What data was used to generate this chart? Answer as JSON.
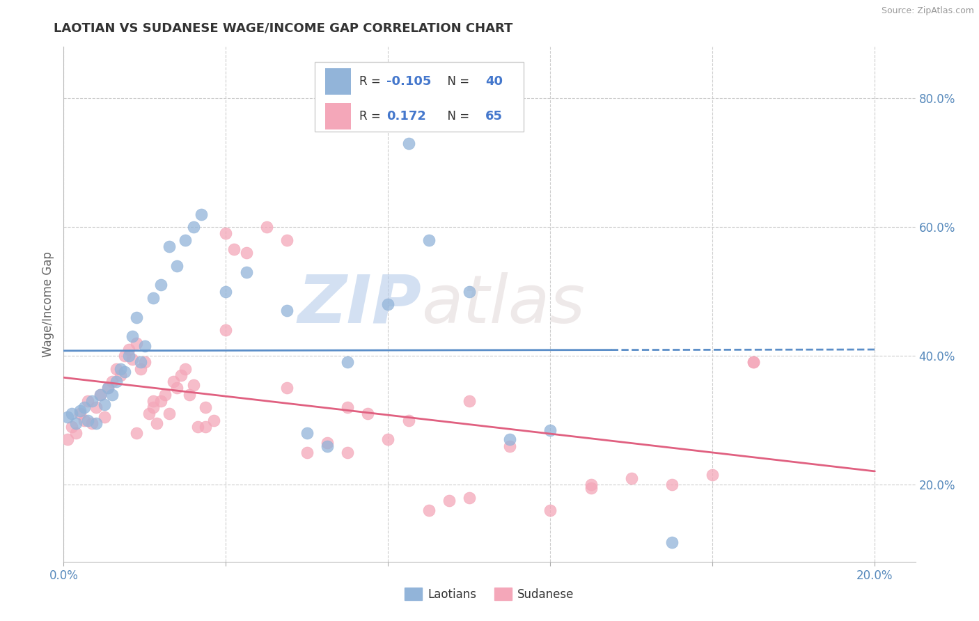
{
  "title": "LAOTIAN VS SUDANESE WAGE/INCOME GAP CORRELATION CHART",
  "source_text": "Source: ZipAtlas.com",
  "ylabel": "Wage/Income Gap",
  "watermark_zip": "ZIP",
  "watermark_atlas": "atlas",
  "xlim": [
    0.0,
    0.21
  ],
  "ylim": [
    0.08,
    0.88
  ],
  "xtick_vals": [
    0.0,
    0.04,
    0.08,
    0.12,
    0.16,
    0.2
  ],
  "xticklabels": [
    "0.0%",
    "",
    "",
    "",
    "",
    "20.0%"
  ],
  "ytick_vals": [
    0.2,
    0.4,
    0.6,
    0.8
  ],
  "ytick_labels": [
    "20.0%",
    "40.0%",
    "60.0%",
    "80.0%"
  ],
  "laotians_R": -0.105,
  "laotians_N": 40,
  "sudanese_R": 0.172,
  "sudanese_N": 65,
  "laotian_color": "#92b4d9",
  "sudanese_color": "#f4a7b9",
  "laotian_line_color": "#5b8ec8",
  "sudanese_line_color": "#e06080",
  "legend_laotian_label": "Laotians",
  "legend_sudanese_label": "Sudanese",
  "laotian_x": [
    0.001,
    0.002,
    0.003,
    0.004,
    0.005,
    0.006,
    0.007,
    0.008,
    0.009,
    0.01,
    0.011,
    0.012,
    0.013,
    0.014,
    0.015,
    0.016,
    0.017,
    0.018,
    0.019,
    0.02,
    0.022,
    0.024,
    0.026,
    0.028,
    0.03,
    0.032,
    0.034,
    0.04,
    0.045,
    0.055,
    0.06,
    0.065,
    0.07,
    0.08,
    0.085,
    0.09,
    0.1,
    0.11,
    0.12,
    0.15
  ],
  "laotian_y": [
    0.305,
    0.31,
    0.295,
    0.315,
    0.32,
    0.3,
    0.33,
    0.295,
    0.34,
    0.325,
    0.35,
    0.34,
    0.36,
    0.38,
    0.375,
    0.4,
    0.43,
    0.46,
    0.39,
    0.415,
    0.49,
    0.51,
    0.57,
    0.54,
    0.58,
    0.6,
    0.62,
    0.5,
    0.53,
    0.47,
    0.28,
    0.26,
    0.39,
    0.48,
    0.73,
    0.58,
    0.5,
    0.27,
    0.285,
    0.11
  ],
  "sudanese_x": [
    0.001,
    0.002,
    0.003,
    0.004,
    0.005,
    0.006,
    0.007,
    0.008,
    0.009,
    0.01,
    0.011,
    0.012,
    0.013,
    0.014,
    0.015,
    0.016,
    0.017,
    0.018,
    0.019,
    0.02,
    0.021,
    0.022,
    0.023,
    0.024,
    0.025,
    0.026,
    0.027,
    0.028,
    0.029,
    0.03,
    0.031,
    0.032,
    0.033,
    0.035,
    0.037,
    0.04,
    0.042,
    0.045,
    0.05,
    0.055,
    0.06,
    0.065,
    0.07,
    0.075,
    0.08,
    0.09,
    0.095,
    0.1,
    0.11,
    0.12,
    0.13,
    0.14,
    0.15,
    0.16,
    0.17,
    0.018,
    0.022,
    0.035,
    0.04,
    0.055,
    0.07,
    0.085,
    0.1,
    0.13,
    0.17
  ],
  "sudanese_y": [
    0.27,
    0.29,
    0.28,
    0.31,
    0.3,
    0.33,
    0.295,
    0.32,
    0.34,
    0.305,
    0.35,
    0.36,
    0.38,
    0.37,
    0.4,
    0.41,
    0.395,
    0.42,
    0.38,
    0.39,
    0.31,
    0.32,
    0.295,
    0.33,
    0.34,
    0.31,
    0.36,
    0.35,
    0.37,
    0.38,
    0.34,
    0.355,
    0.29,
    0.32,
    0.3,
    0.59,
    0.565,
    0.56,
    0.6,
    0.58,
    0.25,
    0.265,
    0.25,
    0.31,
    0.27,
    0.16,
    0.175,
    0.18,
    0.26,
    0.16,
    0.195,
    0.21,
    0.2,
    0.215,
    0.39,
    0.28,
    0.33,
    0.29,
    0.44,
    0.35,
    0.32,
    0.3,
    0.33,
    0.2,
    0.39
  ]
}
